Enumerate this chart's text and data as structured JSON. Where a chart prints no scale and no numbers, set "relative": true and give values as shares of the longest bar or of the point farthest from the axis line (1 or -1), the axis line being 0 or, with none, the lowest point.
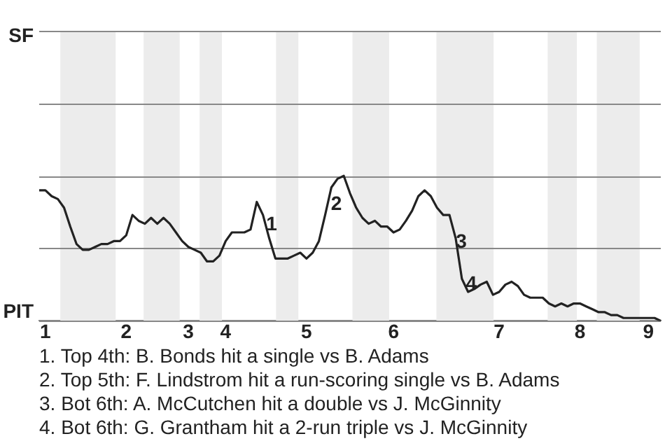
{
  "chart_data": {
    "type": "line",
    "relative": true,
    "categories": [
      null,
      "1",
      null,
      null,
      null,
      null,
      null,
      null,
      null,
      null,
      null,
      null,
      null,
      null,
      "2",
      null,
      null,
      null,
      null,
      null,
      null,
      null,
      null,
      null,
      "3",
      null,
      null,
      null,
      null,
      null,
      "4",
      null,
      null,
      null,
      null,
      null,
      null,
      null,
      null,
      null,
      null,
      null,
      null,
      "5",
      null,
      null,
      null,
      null,
      null,
      null,
      null,
      null,
      null,
      null,
      null,
      null,
      null,
      "6",
      null,
      null,
      null,
      null,
      null,
      null,
      null,
      null,
      null,
      null,
      null,
      null,
      null,
      null,
      null,
      null,
      "7",
      null,
      null,
      null,
      null,
      null,
      null,
      null,
      null,
      null,
      null,
      null,
      null,
      "8",
      null,
      null,
      null,
      null,
      null,
      null,
      null,
      null,
      null,
      null,
      "9",
      null,
      null
    ],
    "values": [
      0.9,
      0.9,
      0.86,
      0.84,
      0.78,
      0.65,
      0.53,
      0.49,
      0.49,
      0.51,
      0.53,
      0.53,
      0.55,
      0.55,
      0.59,
      0.73,
      0.69,
      0.67,
      0.71,
      0.67,
      0.71,
      0.67,
      0.61,
      0.55,
      0.51,
      0.49,
      0.47,
      0.41,
      0.41,
      0.45,
      0.55,
      0.61,
      0.61,
      0.61,
      0.63,
      0.82,
      0.73,
      0.57,
      0.43,
      0.43,
      0.43,
      0.45,
      0.47,
      0.43,
      0.47,
      0.55,
      0.73,
      0.92,
      0.98,
      1,
      0.88,
      0.78,
      0.71,
      0.67,
      0.69,
      0.65,
      0.65,
      0.61,
      0.63,
      0.69,
      0.76,
      0.86,
      0.9,
      0.86,
      0.78,
      0.73,
      0.73,
      0.57,
      0.29,
      0.2,
      0.22,
      0.25,
      0.27,
      0.18,
      0.2,
      0.25,
      0.27,
      0.24,
      0.18,
      0.16,
      0.16,
      0.16,
      0.12,
      0.1,
      0.12,
      0.1,
      0.12,
      0.12,
      0.1,
      0.08,
      0.06,
      0.06,
      0.04,
      0.04,
      0.02,
      0.02,
      0.02,
      0.02,
      0.02,
      0.02,
      0
    ],
    "color": "#222222",
    "marker": "none",
    "line_style": "solid",
    "legend": false,
    "ref_lines": [
      {
        "axis": "y",
        "value": 0.5,
        "color": "#888888"
      },
      {
        "axis": "y",
        "value": 1,
        "color": "#888888"
      }
    ],
    "annotations": [
      "SF",
      "PIT",
      "1",
      "2",
      "3",
      "4",
      "1. Top 4th: B. Bonds hit a single vs B. Adams",
      "2. Top 5th: F. Lindstrom hit a run-scoring single vs B. Adams",
      "3. Bot 6th: A. McCutchen hit a double vs J. McGinnity",
      "4. Bot 6th: G. Grantham hit a 2-run triple vs J. McGinnity"
    ]
  }
}
